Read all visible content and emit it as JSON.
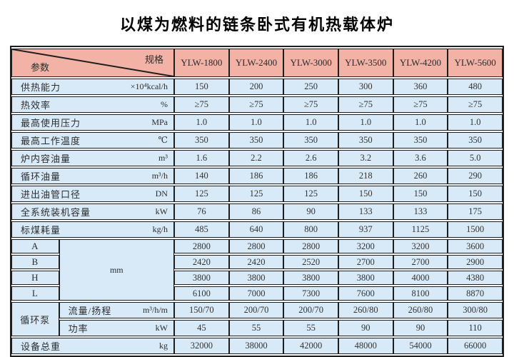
{
  "title": "以煤为燃料的链条卧式有机热载体炉",
  "colors": {
    "header_bg": "#f2b2a6",
    "row_bg": "#d8eaf8",
    "border": "#1e1e1e",
    "title_color": "#000000",
    "text": "#333333"
  },
  "table": {
    "corner": {
      "spec_label": "规格",
      "param_label": "参数"
    },
    "columns": [
      "YLW-1800",
      "YLW-2400",
      "YLW-3000",
      "YLW-3500",
      "YLW-4200",
      "YLW-5600"
    ],
    "sections": [
      {
        "kind": "simple",
        "rows": [
          {
            "label": "供热能力",
            "unit": "×10⁴kcal/h",
            "values": [
              "150",
              "200",
              "250",
              "300",
              "360",
              "480"
            ]
          },
          {
            "label": "热效率",
            "unit": "%",
            "values": [
              "≥75",
              "≥75",
              "≥75",
              "≥75",
              "≥75",
              "≥75"
            ]
          },
          {
            "label": "最高使用压力",
            "unit": "MPa",
            "values": [
              "1.0",
              "1.0",
              "1.0",
              "1.0",
              "1.0",
              "1.0"
            ]
          },
          {
            "label": "最高工作温度",
            "unit": "℃",
            "values": [
              "350",
              "350",
              "350",
              "350",
              "350",
              "350"
            ]
          },
          {
            "label": "炉内容油量",
            "unit": "m³",
            "values": [
              "1.6",
              "2.2",
              "2.6",
              "3.2",
              "3.6",
              "5.0"
            ]
          },
          {
            "label": "循环油量",
            "unit": "m³/h",
            "values": [
              "140",
              "186",
              "186",
              "218",
              "260",
              "290"
            ]
          },
          {
            "label": "进出油管口径",
            "unit": "DN",
            "values": [
              "125",
              "125",
              "125",
              "150",
              "150",
              "150"
            ]
          },
          {
            "label": "全系统装机容量",
            "unit": "kW",
            "values": [
              "76",
              "86",
              "90",
              "133",
              "133",
              "175"
            ]
          },
          {
            "label": "标煤耗量",
            "unit": "kg/h",
            "values": [
              "485",
              "640",
              "800",
              "937",
              "1125",
              "1500"
            ]
          }
        ]
      },
      {
        "kind": "dims",
        "unit": "mm",
        "rows": [
          {
            "key": "A",
            "values": [
              "2800",
              "2800",
              "2800",
              "3200",
              "3200",
              "3600"
            ]
          },
          {
            "key": "B",
            "values": [
              "2420",
              "2420",
              "2520",
              "2700",
              "2700",
              "2900"
            ]
          },
          {
            "key": "H",
            "values": [
              "3800",
              "3800",
              "3800",
              "3800",
              "4000",
              "4380"
            ]
          },
          {
            "key": "L",
            "values": [
              "6100",
              "7000",
              "7300",
              "7600",
              "8100",
              "8870"
            ]
          }
        ]
      },
      {
        "kind": "pump",
        "group_label": "循环泵",
        "rows": [
          {
            "label": "流量/扬程",
            "unit": "m³/h/m",
            "values": [
              "150/70",
              "200/70",
              "200/70",
              "260/80",
              "260/80",
              "300/80"
            ]
          },
          {
            "label": "功率",
            "unit": "kW",
            "values": [
              "45",
              "55",
              "55",
              "90",
              "90",
              "110"
            ]
          }
        ]
      },
      {
        "kind": "simple",
        "rows": [
          {
            "label": "设备总重",
            "unit": "kg",
            "values": [
              "32000",
              "38000",
              "42000",
              "48000",
              "54000",
              "66000"
            ]
          }
        ]
      }
    ]
  }
}
